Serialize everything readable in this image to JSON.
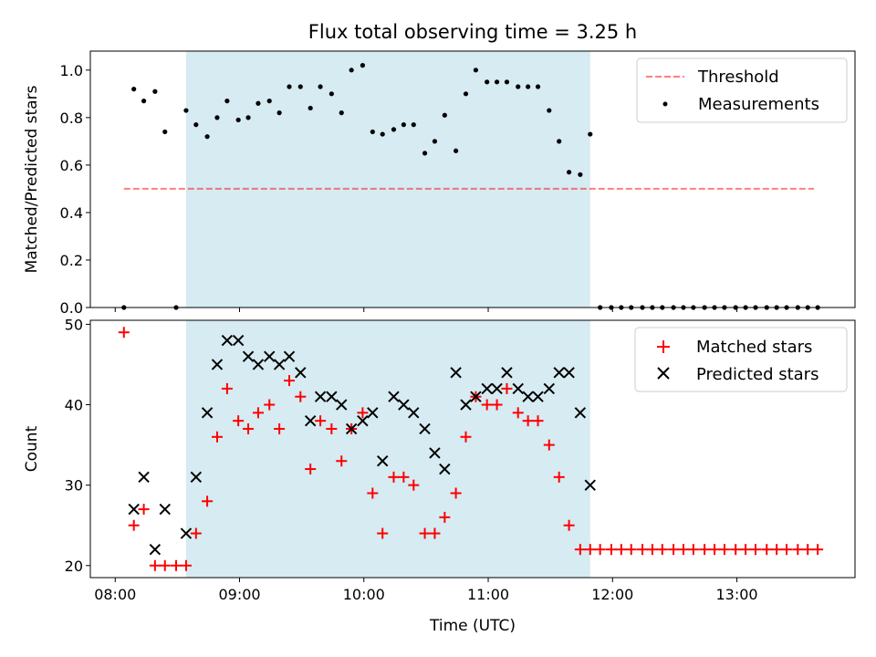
{
  "figure": {
    "title": "Flux total observing time = 3.25 h"
  },
  "colors": {
    "band": "#add8e6",
    "threshold": "#ff0000",
    "measure": "#000000",
    "matched": "#ff0000",
    "predicted": "#000000"
  },
  "chart_data": [
    {
      "type": "scatter",
      "panel": "top",
      "ylabel": "Matched/Predicted stars",
      "ylim": [
        0,
        1.08
      ],
      "yticks": [
        0.0,
        0.2,
        0.4,
        0.6,
        0.8,
        1.0
      ],
      "ytick_labels": [
        "0.0",
        "0.2",
        "0.4",
        "0.6",
        "0.8",
        "1.0"
      ],
      "xlim": [
        7.8,
        13.95
      ],
      "grid": false,
      "legend_position": "top-right",
      "legend": [
        "Threshold",
        "Measurements"
      ],
      "shaded_interval": [
        8.57,
        11.82
      ],
      "threshold": {
        "name": "Threshold",
        "value": 0.5,
        "x_range": [
          8.07,
          13.62
        ]
      },
      "series": [
        {
          "name": "Measurements",
          "marker": "dot",
          "x": [
            8.07,
            8.15,
            8.23,
            8.32,
            8.4,
            8.49,
            8.57,
            8.65,
            8.74,
            8.82,
            8.9,
            8.99,
            9.07,
            9.15,
            9.24,
            9.32,
            9.4,
            9.49,
            9.57,
            9.65,
            9.74,
            9.82,
            9.9,
            9.99,
            10.07,
            10.15,
            10.24,
            10.32,
            10.4,
            10.49,
            10.57,
            10.65,
            10.74,
            10.82,
            10.9,
            10.99,
            11.07,
            11.15,
            11.24,
            11.32,
            11.4,
            11.49,
            11.57,
            11.65,
            11.74,
            11.82,
            11.9,
            11.99,
            12.07,
            12.15,
            12.24,
            12.32,
            12.4,
            12.49,
            12.57,
            12.65,
            12.74,
            12.82,
            12.9,
            12.99,
            13.07,
            13.15,
            13.24,
            13.32,
            13.4,
            13.49,
            13.57,
            13.65
          ],
          "y": [
            0.0,
            0.92,
            0.87,
            0.91,
            0.74,
            0.0,
            0.83,
            0.77,
            0.72,
            0.8,
            0.87,
            0.79,
            0.8,
            0.86,
            0.87,
            0.82,
            0.93,
            0.93,
            0.84,
            0.93,
            0.9,
            0.82,
            1.0,
            1.02,
            0.74,
            0.73,
            0.75,
            0.77,
            0.77,
            0.65,
            0.7,
            0.81,
            0.66,
            0.9,
            1.0,
            0.95,
            0.95,
            0.95,
            0.93,
            0.93,
            0.93,
            0.83,
            0.7,
            0.57,
            0.56,
            0.73,
            0.0,
            0.0,
            0.0,
            0.0,
            0.0,
            0.0,
            0.0,
            0.0,
            0.0,
            0.0,
            0.0,
            0.0,
            0.0,
            0.0,
            0.0,
            0.0,
            0.0,
            0.0,
            0.0,
            0.0,
            0.0,
            0.0
          ]
        }
      ]
    },
    {
      "type": "scatter",
      "panel": "bottom",
      "xlabel": "Time (UTC)",
      "ylabel": "Count",
      "ylim": [
        18.5,
        50.5
      ],
      "yticks": [
        20,
        30,
        40,
        50
      ],
      "ytick_labels": [
        "20",
        "30",
        "40",
        "50"
      ],
      "xlim": [
        7.8,
        13.95
      ],
      "xticks": [
        8,
        9,
        10,
        11,
        12,
        13
      ],
      "xtick_labels": [
        "08:00",
        "09:00",
        "10:00",
        "11:00",
        "12:00",
        "13:00"
      ],
      "grid": false,
      "legend_position": "top-right",
      "legend": [
        "Matched stars",
        "Predicted stars"
      ],
      "shaded_interval": [
        8.57,
        11.82
      ],
      "series": [
        {
          "name": "Matched stars",
          "marker": "plus",
          "x": [
            8.07,
            8.15,
            8.23,
            8.32,
            8.4,
            8.49,
            8.57,
            8.65,
            8.74,
            8.82,
            8.9,
            8.99,
            9.07,
            9.15,
            9.24,
            9.32,
            9.4,
            9.49,
            9.57,
            9.65,
            9.74,
            9.82,
            9.9,
            9.99,
            10.07,
            10.15,
            10.24,
            10.32,
            10.4,
            10.49,
            10.57,
            10.65,
            10.74,
            10.82,
            10.9,
            10.99,
            11.07,
            11.15,
            11.24,
            11.32,
            11.4,
            11.49,
            11.57,
            11.65,
            11.74,
            11.82,
            11.9,
            11.99,
            12.07,
            12.15,
            12.24,
            12.32,
            12.4,
            12.49,
            12.57,
            12.65,
            12.74,
            12.82,
            12.9,
            12.99,
            13.07,
            13.15,
            13.24,
            13.32,
            13.4,
            13.49,
            13.57,
            13.65
          ],
          "y": [
            49,
            25,
            27,
            20,
            20,
            20,
            20,
            24,
            28,
            36,
            42,
            38,
            37,
            39,
            40,
            37,
            43,
            41,
            32,
            38,
            37,
            33,
            37,
            39,
            29,
            24,
            31,
            31,
            30,
            24,
            24,
            26,
            29,
            36,
            41,
            40,
            40,
            42,
            39,
            38,
            38,
            35,
            31,
            25,
            22,
            22,
            22,
            22,
            22,
            22,
            22,
            22,
            22,
            22,
            22,
            22,
            22,
            22,
            22,
            22,
            22,
            22,
            22,
            22,
            22,
            22,
            22,
            22
          ]
        },
        {
          "name": "Predicted stars",
          "marker": "x",
          "x": [
            8.15,
            8.23,
            8.32,
            8.4,
            8.57,
            8.65,
            8.74,
            8.82,
            8.9,
            8.99,
            9.07,
            9.15,
            9.24,
            9.32,
            9.4,
            9.49,
            9.57,
            9.65,
            9.74,
            9.82,
            9.9,
            9.99,
            10.07,
            10.15,
            10.24,
            10.32,
            10.4,
            10.49,
            10.57,
            10.65,
            10.74,
            10.82,
            10.9,
            10.99,
            11.07,
            11.15,
            11.24,
            11.32,
            11.4,
            11.49,
            11.57,
            11.65,
            11.74,
            11.82
          ],
          "y": [
            27,
            31,
            22,
            27,
            24,
            31,
            39,
            45,
            48,
            48,
            46,
            45,
            46,
            45,
            46,
            44,
            38,
            41,
            41,
            40,
            37,
            38,
            39,
            33,
            41,
            40,
            39,
            37,
            34,
            32,
            44,
            40,
            41,
            42,
            42,
            44,
            42,
            41,
            41,
            42,
            44,
            44,
            39,
            30
          ]
        }
      ]
    }
  ]
}
